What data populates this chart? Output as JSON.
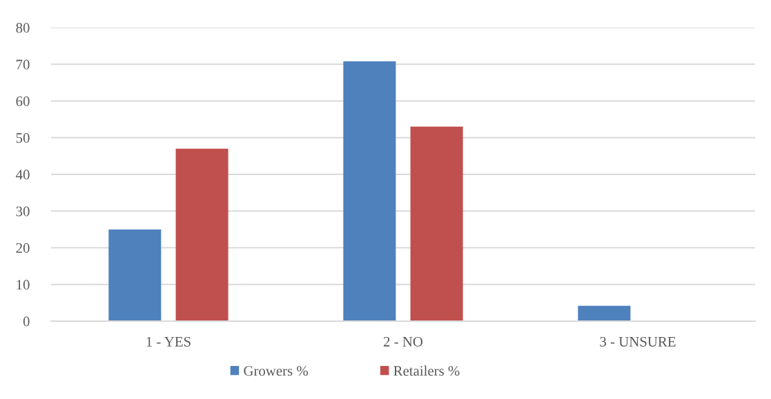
{
  "chart_data": {
    "type": "bar",
    "categories": [
      "1 - YES",
      "2 - NO",
      "3 - UNSURE"
    ],
    "series": [
      {
        "name": "Growers %",
        "color": "#4f81bd",
        "values": [
          25,
          70.8,
          4.2
        ]
      },
      {
        "name": "Retailers %",
        "color": "#c0504d",
        "values": [
          47,
          53,
          0
        ]
      }
    ],
    "ylim": [
      0,
      80
    ],
    "yticks": [
      0,
      10,
      20,
      30,
      40,
      50,
      60,
      70,
      80
    ],
    "grid": "y",
    "legend": "bottom"
  }
}
